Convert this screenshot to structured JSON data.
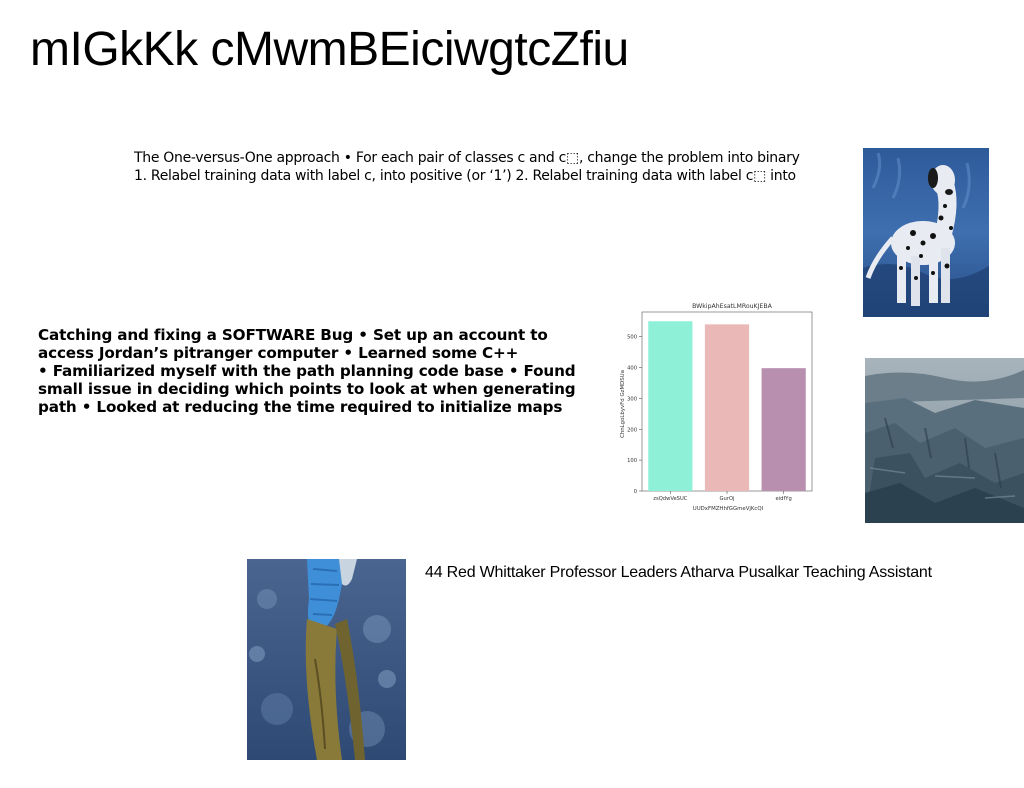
{
  "slide": {
    "title": "mIGkKk cMwmBEiciwgtcZfiu",
    "paragraph1": {
      "line1": "The One-versus-One approach • For each pair of classes c and c⬚, change the problem into binary",
      "line2": "1. Relabel training data with label c, into positive (or ‘1’) 2. Relabel training data with label c⬚ into"
    },
    "paragraph2": {
      "line1": "Catching and fixing a SOFTWARE Bug • Set up an account to",
      "line2": "access Jordan’s pitranger computer • Learned some C++",
      "line3": "• Familiarized myself with the path planning code base • Found",
      "line4": "small issue in deciding which points to look at when generating",
      "line5": "path • Looked at reducing the time required to initialize maps"
    },
    "paragraph3": "44 Red Whittaker Professor Leaders Atharva Pusalkar Teaching Assistant",
    "images": {
      "dog": "dalmatian-photo",
      "canyon": "canyon-landscape-photo",
      "legs": "person-legs-photo"
    }
  },
  "chart_data": {
    "type": "bar",
    "title": "BWkipAhEsatLMRouKJEBA",
    "xlabel": "UUDxFMZHhfGGmeVjKcQI",
    "ylabel": "ChnLgoLbyvFd GzMDSUa",
    "categories": [
      "zsQdwVeSUC",
      "GurOj",
      "eidfYg"
    ],
    "values": [
      550,
      540,
      398
    ],
    "colors": [
      "#8ff0d8",
      "#ebb8b8",
      "#b88faf"
    ],
    "yticks": [
      0,
      100,
      200,
      300,
      400,
      500
    ],
    "ylim": [
      0,
      580
    ],
    "grid": false
  }
}
